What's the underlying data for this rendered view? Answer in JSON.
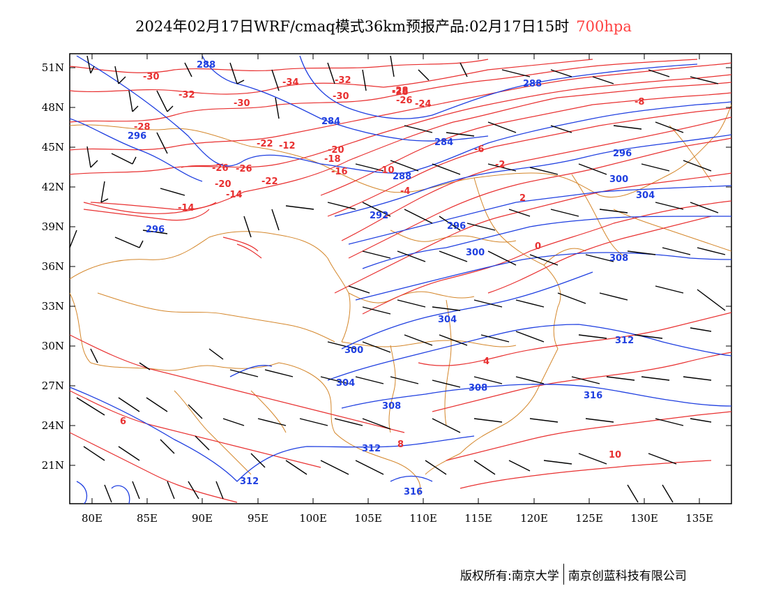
{
  "title": {
    "main": "2024年02月17日WRF/cmaq模式36km预报产品:02月17日15时",
    "level": "700hpa"
  },
  "axes": {
    "lat_ticks": [
      "51N",
      "48N",
      "45N",
      "42N",
      "39N",
      "36N",
      "33N",
      "30N",
      "27N",
      "24N",
      "21N"
    ],
    "lon_ticks": [
      "80E",
      "85E",
      "90E",
      "95E",
      "100E",
      "105E",
      "110E",
      "115E",
      "120E",
      "125E",
      "130E",
      "135E"
    ]
  },
  "temperature_labels": [
    "-30",
    "-32",
    "-34",
    "-32",
    "-30",
    "-28",
    "-26",
    "-24",
    "-22",
    "-20",
    "-18",
    "-16",
    "-14",
    "-12",
    "-10",
    "-8",
    "-6",
    "-4",
    "-2",
    "0",
    "2",
    "4",
    "6",
    "8",
    "10",
    "-28",
    "-30",
    "-26",
    "-28",
    "-20",
    "-22",
    "-26",
    "-14"
  ],
  "height_labels": [
    "288",
    "288",
    "284",
    "284",
    "288",
    "292",
    "296",
    "296",
    "296",
    "300",
    "300",
    "304",
    "304",
    "304",
    "308",
    "308",
    "312",
    "312",
    "312",
    "316",
    "316",
    "300",
    "308",
    "296"
  ],
  "colors": {
    "temperature": "#e83030",
    "height": "#1f3fe0",
    "border": "#d4862a",
    "wind": "#000000"
  },
  "footer": {
    "left": "版权所有:南京大学",
    "right": "南京创蓝科技有限公司"
  }
}
